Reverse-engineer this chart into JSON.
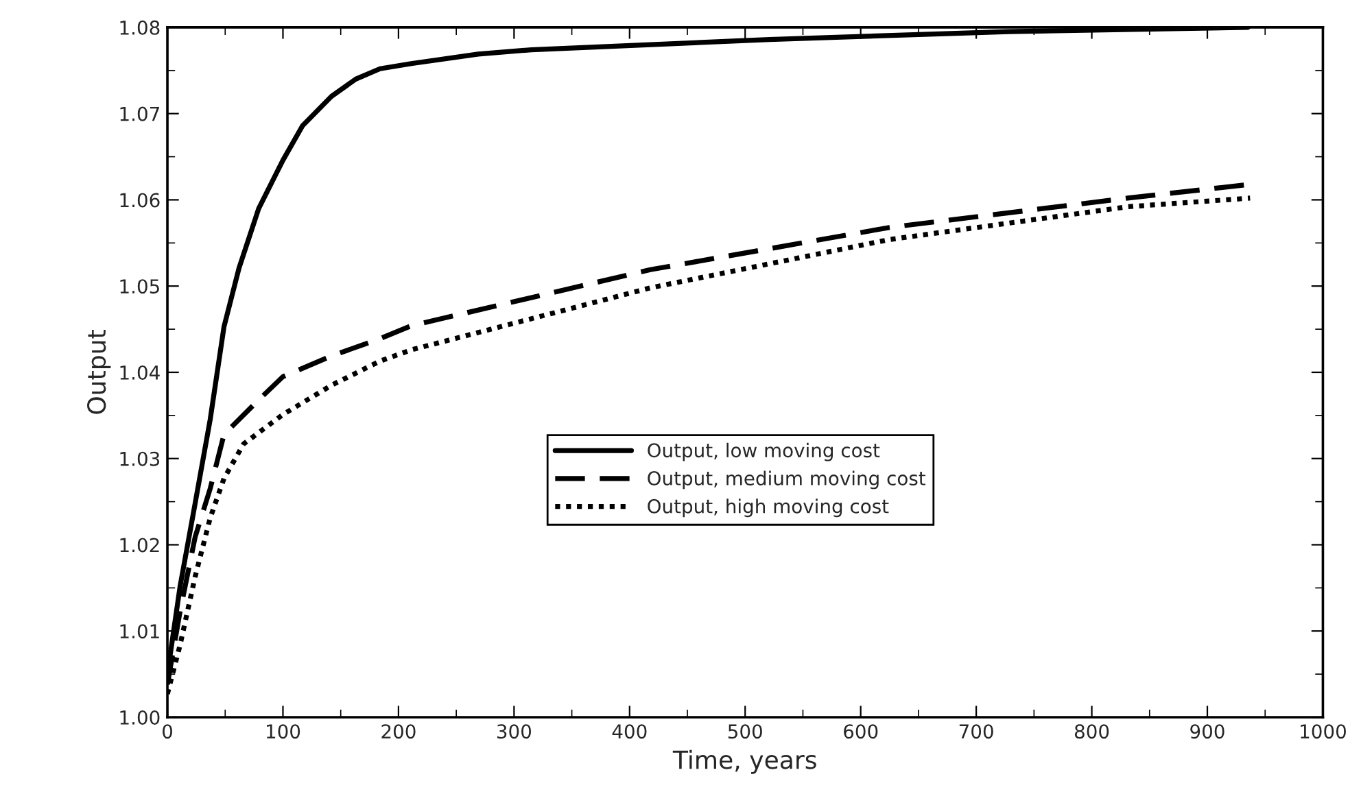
{
  "chart_data": {
    "type": "line",
    "xlabel": "Time, years",
    "ylabel": "Output",
    "xlim": [
      0,
      1000
    ],
    "ylim": [
      1.0,
      1.08
    ],
    "xticks": [
      0,
      100,
      200,
      300,
      400,
      500,
      600,
      700,
      800,
      900,
      1000
    ],
    "yticks": [
      {
        "value": 1.0,
        "label": "1.00"
      },
      {
        "value": 1.01,
        "label": "1.01"
      },
      {
        "value": 1.02,
        "label": "1.02"
      },
      {
        "value": 1.03,
        "label": "1.03"
      },
      {
        "value": 1.04,
        "label": "1.04"
      },
      {
        "value": 1.05,
        "label": "1.05"
      },
      {
        "value": 1.06,
        "label": "1.06"
      },
      {
        "value": 1.07,
        "label": "1.07"
      },
      {
        "value": 1.08,
        "label": "1.08"
      }
    ],
    "grid": false,
    "legend": "center",
    "marker": "none",
    "series": [
      {
        "name": "Output, low moving cost",
        "color": "#000000",
        "line_style": "solid",
        "x": [
          0,
          11,
          24,
          37,
          49,
          62,
          79,
          100,
          117,
          142,
          163,
          184,
          211,
          269,
          315,
          521,
          728,
          935
        ],
        "values": [
          1.005,
          1.0152,
          1.0248,
          1.0345,
          1.0453,
          1.0521,
          1.059,
          1.0646,
          1.0686,
          1.072,
          1.074,
          1.0752,
          1.0758,
          1.0769,
          1.0774,
          1.0786,
          1.0795,
          1.08
        ]
      },
      {
        "name": "Output, medium moving cost",
        "color": "#000000",
        "line_style": "dashed",
        "x": [
          0,
          11,
          24,
          37,
          49,
          79,
          100,
          142,
          184,
          211,
          418,
          625,
          831,
          937
        ],
        "values": [
          1.0038,
          1.0123,
          1.0209,
          1.0265,
          1.0328,
          1.0368,
          1.0395,
          1.0419,
          1.0439,
          1.0454,
          1.0519,
          1.0568,
          1.0602,
          1.0618
        ]
      },
      {
        "name": "Output, high moving cost",
        "color": "#000000",
        "line_style": "dotted",
        "x": [
          0,
          11,
          24,
          37,
          49,
          66,
          100,
          142,
          184,
          211,
          418,
          625,
          831,
          937
        ],
        "values": [
          1.0027,
          1.0084,
          1.0163,
          1.0231,
          1.0277,
          1.0317,
          1.0351,
          1.0385,
          1.0413,
          1.0426,
          1.0498,
          1.0554,
          1.0592,
          1.0602
        ]
      }
    ]
  }
}
